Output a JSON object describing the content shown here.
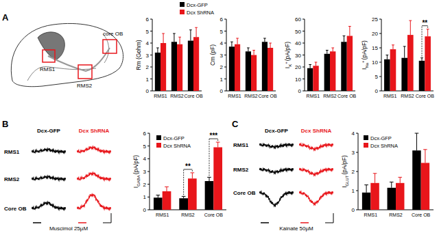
{
  "figure": {
    "panel_labels": [
      "A",
      "B",
      "C"
    ],
    "schematic_labels": [
      "RMS1",
      "RMS2",
      "core OB"
    ],
    "trace_columns": [
      "Dcx-GFP",
      "Dcx ShRNA"
    ],
    "trace_rows": [
      "RMS1",
      "RMS2",
      "Core OB"
    ],
    "stimuli": [
      "Muscimol 25µM",
      "Kainate 50µM"
    ]
  },
  "chart_data": [
    {
      "type": "bar",
      "y_label": "Rm (Gohm)",
      "categories": [
        "RMS1",
        "RMS2",
        "Core OB"
      ],
      "series": [
        {
          "name": "Dcx-GFP",
          "color": "#000000",
          "values": [
            3.2,
            4.1,
            4.2
          ],
          "errors": [
            0.4,
            0.7,
            0.9
          ]
        },
        {
          "name": "Dcx ShRNA",
          "color": "#e8161b",
          "values": [
            4.0,
            3.9,
            4.5
          ],
          "errors": [
            0.8,
            0.6,
            0.8
          ]
        }
      ],
      "ylim": [
        0,
        6
      ],
      "yticks": [
        0,
        1,
        2,
        3,
        4,
        5,
        6
      ],
      "legend": "top"
    },
    {
      "type": "bar",
      "y_label": "Cm (pF)",
      "categories": [
        "RMS1",
        "RMS2",
        "Core OB"
      ],
      "series": [
        {
          "color": "#000000",
          "values": [
            3.7,
            3.3,
            4.1
          ],
          "errors": [
            0.4,
            0.3,
            0.3
          ]
        },
        {
          "color": "#e8161b",
          "values": [
            3.9,
            3.0,
            3.6
          ],
          "errors": [
            0.5,
            0.4,
            0.4
          ]
        }
      ],
      "ylim": [
        0,
        6
      ],
      "yticks": [
        0,
        1,
        2,
        3,
        4,
        5,
        6
      ]
    },
    {
      "type": "bar",
      "y_label": {
        "text": "I",
        "sub": "K",
        "sup": "+",
        "unit": "(pA/pF)"
      },
      "categories": [
        "RMS1",
        "RMS2",
        "Core OB"
      ],
      "series": [
        {
          "color": "#000000",
          "values": [
            19,
            31,
            41
          ],
          "errors": [
            3,
            3,
            5
          ]
        },
        {
          "color": "#e8161b",
          "values": [
            21,
            33,
            46
          ],
          "errors": [
            3,
            3,
            8
          ]
        }
      ],
      "ylim": [
        0,
        60
      ],
      "yticks": [
        0,
        10,
        20,
        30,
        40,
        50,
        60
      ]
    },
    {
      "type": "bar",
      "y_label": {
        "text": "I",
        "sub": "Na",
        "sup": "+",
        "unit": "(pA/pF)"
      },
      "categories": [
        "RMS1",
        "RMS2",
        "Core OB"
      ],
      "series": [
        {
          "color": "#000000",
          "values": [
            11,
            11.5,
            10.5
          ],
          "errors": [
            1.5,
            4,
            1
          ]
        },
        {
          "color": "#e8161b",
          "values": [
            14.5,
            19.5,
            19
          ],
          "errors": [
            1.5,
            5,
            2.5
          ]
        }
      ],
      "ylim": [
        0,
        25
      ],
      "yticks": [
        0,
        5,
        10,
        15,
        20,
        25
      ],
      "annotations": [
        {
          "text": "**",
          "category": "Core OB"
        }
      ]
    },
    {
      "type": "bar",
      "y_label": {
        "text": "I",
        "sub": "GABA",
        "unit": "(pA/pF)"
      },
      "categories": [
        "RMS1",
        "RMS2",
        "Core OB"
      ],
      "series": [
        {
          "name": "Dcx-GFP",
          "color": "#000000",
          "values": [
            0.95,
            0.9,
            2.25
          ],
          "errors": [
            0.2,
            0.15,
            0.3
          ]
        },
        {
          "name": "Dcx ShRNA",
          "color": "#e8161b",
          "values": [
            1.45,
            2.45,
            4.9
          ],
          "errors": [
            0.35,
            0.45,
            0.4
          ]
        }
      ],
      "ylim": [
        0,
        6
      ],
      "yticks": [
        0,
        1,
        2,
        3,
        4,
        5,
        6
      ],
      "legend": "top-left",
      "annotations": [
        {
          "text": "**",
          "category": "RMS2"
        },
        {
          "text": "***",
          "category": "Core OB"
        }
      ]
    },
    {
      "type": "bar",
      "y_label": {
        "text": "I",
        "sub": "GLUT",
        "unit": "(pA/pF)"
      },
      "categories": [
        "RMS1",
        "RMS2",
        "Core OB"
      ],
      "series": [
        {
          "name": "Dcx-GFP",
          "color": "#000000",
          "values": [
            0.9,
            1.15,
            3.1
          ],
          "errors": [
            0.4,
            0.3,
            0.9
          ]
        },
        {
          "name": "Dcx ShRNA",
          "color": "#e8161b",
          "values": [
            1.4,
            1.4,
            2.45
          ],
          "errors": [
            0.5,
            0.3,
            0.7
          ]
        }
      ],
      "ylim": [
        0,
        4
      ],
      "yticks": [
        0,
        1,
        2,
        3,
        4
      ],
      "legend": "top-left"
    }
  ]
}
